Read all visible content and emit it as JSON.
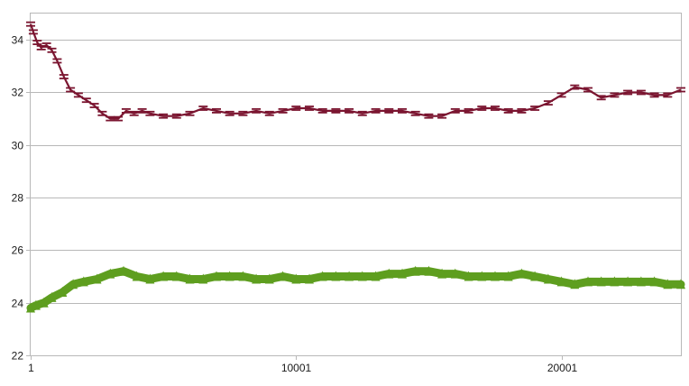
{
  "chart_data": {
    "type": "line",
    "title": "",
    "xlabel": "",
    "ylabel": "",
    "xlim": [
      1,
      24500
    ],
    "ylim": [
      22,
      35
    ],
    "x_ticks": [
      1,
      10001,
      20001
    ],
    "x_tick_labels": [
      "1",
      "10001",
      "20001"
    ],
    "y_ticks": [
      22,
      24,
      26,
      28,
      30,
      32,
      34
    ],
    "y_tick_labels": [
      "22",
      "24",
      "26",
      "28",
      "30",
      "32",
      "34"
    ],
    "grid": "horizontal",
    "legend": "none",
    "series": [
      {
        "color": "#7b1530",
        "marker": "dash",
        "x": [
          1,
          100,
          250,
          400,
          600,
          800,
          1000,
          1250,
          1500,
          1800,
          2100,
          2400,
          2700,
          3000,
          3300,
          3600,
          3900,
          4200,
          4500,
          5000,
          5500,
          6000,
          6500,
          7000,
          7500,
          8000,
          8500,
          9000,
          9500,
          10000,
          10500,
          11000,
          11500,
          12000,
          12500,
          13000,
          13500,
          14000,
          14500,
          15000,
          15500,
          16000,
          16500,
          17000,
          17500,
          18000,
          18500,
          19000,
          19500,
          20000,
          20500,
          21000,
          21500,
          22000,
          22500,
          23000,
          23500,
          24000,
          24500
        ],
        "values": [
          34.6,
          34.3,
          33.9,
          33.7,
          33.8,
          33.6,
          33.2,
          32.6,
          32.1,
          31.9,
          31.7,
          31.5,
          31.2,
          31.0,
          31.0,
          31.3,
          31.2,
          31.3,
          31.2,
          31.1,
          31.1,
          31.2,
          31.4,
          31.3,
          31.2,
          31.2,
          31.3,
          31.2,
          31.3,
          31.4,
          31.4,
          31.3,
          31.3,
          31.3,
          31.2,
          31.3,
          31.3,
          31.3,
          31.2,
          31.1,
          31.1,
          31.3,
          31.3,
          31.4,
          31.4,
          31.3,
          31.3,
          31.4,
          31.6,
          31.9,
          32.2,
          32.1,
          31.8,
          31.9,
          32.0,
          32.0,
          31.9,
          31.9,
          32.1
        ]
      },
      {
        "color": "#5e9e1f",
        "marker": "triangle",
        "x": [
          1,
          200,
          500,
          800,
          1200,
          1600,
          2000,
          2500,
          3000,
          3500,
          4000,
          4500,
          5000,
          5500,
          6000,
          6500,
          7000,
          7500,
          8000,
          8500,
          9000,
          9500,
          10000,
          10500,
          11000,
          11500,
          12000,
          12500,
          13000,
          13500,
          14000,
          14500,
          15000,
          15500,
          16000,
          16500,
          17000,
          17500,
          18000,
          18500,
          19000,
          19500,
          20000,
          20500,
          21000,
          21500,
          22000,
          22500,
          23000,
          23500,
          24000,
          24500
        ],
        "values": [
          23.8,
          23.9,
          24.0,
          24.2,
          24.4,
          24.7,
          24.8,
          24.9,
          25.1,
          25.2,
          25.0,
          24.9,
          25.0,
          25.0,
          24.9,
          24.9,
          25.0,
          25.0,
          25.0,
          24.9,
          24.9,
          25.0,
          24.9,
          24.9,
          25.0,
          25.0,
          25.0,
          25.0,
          25.0,
          25.1,
          25.1,
          25.2,
          25.2,
          25.1,
          25.1,
          25.0,
          25.0,
          25.0,
          25.0,
          25.1,
          25.0,
          24.9,
          24.8,
          24.7,
          24.8,
          24.8,
          24.8,
          24.8,
          24.8,
          24.8,
          24.7,
          24.7
        ]
      }
    ]
  }
}
